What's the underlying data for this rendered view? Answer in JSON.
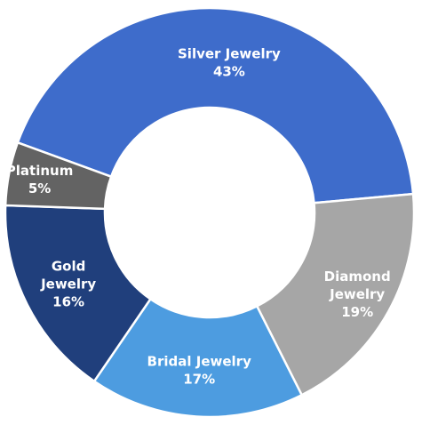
{
  "chart_data": {
    "type": "pie",
    "donut": true,
    "title": "",
    "slices": [
      {
        "label_lines": [
          "Silver Jewelry"
        ],
        "value_label": "43%",
        "value": 43,
        "color": "#3E6CCB"
      },
      {
        "label_lines": [
          "Diamond",
          "Jewelry"
        ],
        "value_label": "19%",
        "value": 19,
        "color": "#A6A6A6"
      },
      {
        "label_lines": [
          "Bridal Jewelry"
        ],
        "value_label": "17%",
        "value": 17,
        "color": "#4D9CE0"
      },
      {
        "label_lines": [
          "Gold",
          "Jewelry"
        ],
        "value_label": "16%",
        "value": 16,
        "color": "#203F7C"
      },
      {
        "label_lines": [
          "Platinum"
        ],
        "value_label": "5%",
        "value": 5,
        "color": "#636363"
      }
    ]
  }
}
